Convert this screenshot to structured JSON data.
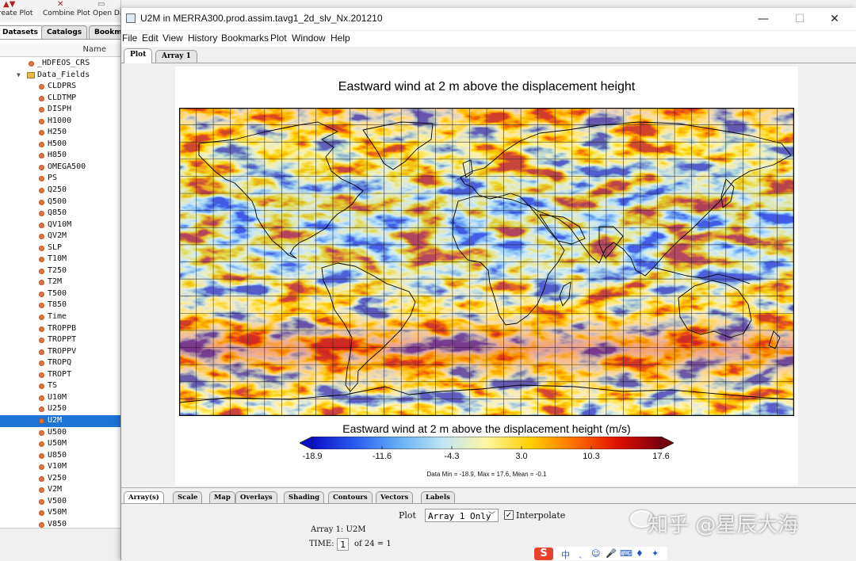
{
  "left_app": {
    "toolbar": [
      {
        "label": "reate Plot",
        "icon": "create-plot-icon"
      },
      {
        "label": "Combine Plot",
        "icon": "combine-plot-icon"
      },
      {
        "label": "Open Da",
        "icon": "open-dataset-icon"
      }
    ],
    "tabs": [
      "Datasets",
      "Catalogs",
      "Bookm"
    ],
    "column_header": "Name",
    "tree": [
      {
        "label": "_HDFEOS_CRS",
        "kind": "var",
        "indent": 2
      },
      {
        "label": "Data_Fields",
        "kind": "folder",
        "indent": 1
      },
      {
        "label": "CLDPRS",
        "kind": "var",
        "indent": 3
      },
      {
        "label": "CLDTMP",
        "kind": "var",
        "indent": 3
      },
      {
        "label": "DISPH",
        "kind": "var",
        "indent": 3
      },
      {
        "label": "H1000",
        "kind": "var",
        "indent": 3
      },
      {
        "label": "H250",
        "kind": "var",
        "indent": 3
      },
      {
        "label": "H500",
        "kind": "var",
        "indent": 3
      },
      {
        "label": "H850",
        "kind": "var",
        "indent": 3
      },
      {
        "label": "OMEGA500",
        "kind": "var",
        "indent": 3
      },
      {
        "label": "PS",
        "kind": "var",
        "indent": 3
      },
      {
        "label": "Q250",
        "kind": "var",
        "indent": 3
      },
      {
        "label": "Q500",
        "kind": "var",
        "indent": 3
      },
      {
        "label": "Q850",
        "kind": "var",
        "indent": 3
      },
      {
        "label": "QV10M",
        "kind": "var",
        "indent": 3
      },
      {
        "label": "QV2M",
        "kind": "var",
        "indent": 3
      },
      {
        "label": "SLP",
        "kind": "var",
        "indent": 3
      },
      {
        "label": "T10M",
        "kind": "var",
        "indent": 3
      },
      {
        "label": "T250",
        "kind": "var",
        "indent": 3
      },
      {
        "label": "T2M",
        "kind": "var",
        "indent": 3
      },
      {
        "label": "T500",
        "kind": "var",
        "indent": 3
      },
      {
        "label": "T850",
        "kind": "var",
        "indent": 3
      },
      {
        "label": "Time",
        "kind": "var",
        "indent": 3
      },
      {
        "label": "TROPPB",
        "kind": "var",
        "indent": 3
      },
      {
        "label": "TROPPT",
        "kind": "var",
        "indent": 3
      },
      {
        "label": "TROPPV",
        "kind": "var",
        "indent": 3
      },
      {
        "label": "TROPQ",
        "kind": "var",
        "indent": 3
      },
      {
        "label": "TROPT",
        "kind": "var",
        "indent": 3
      },
      {
        "label": "TS",
        "kind": "var",
        "indent": 3
      },
      {
        "label": "U10M",
        "kind": "var",
        "indent": 3
      },
      {
        "label": "U250",
        "kind": "var",
        "indent": 3
      },
      {
        "label": "U2M",
        "kind": "var",
        "indent": 3,
        "selected": true
      },
      {
        "label": "U500",
        "kind": "var",
        "indent": 3
      },
      {
        "label": "U50M",
        "kind": "var",
        "indent": 3
      },
      {
        "label": "U850",
        "kind": "var",
        "indent": 3
      },
      {
        "label": "V10M",
        "kind": "var",
        "indent": 3
      },
      {
        "label": "V250",
        "kind": "var",
        "indent": 3
      },
      {
        "label": "V2M",
        "kind": "var",
        "indent": 3
      },
      {
        "label": "V500",
        "kind": "var",
        "indent": 3
      },
      {
        "label": "V50M",
        "kind": "var",
        "indent": 3
      },
      {
        "label": "V850",
        "kind": "var",
        "indent": 3
      }
    ]
  },
  "window": {
    "title": "U2M in MERRA300.prod.assim.tavg1_2d_slv_Nx.201210",
    "controls": {
      "minimize": "—",
      "maximize": "☐",
      "close": "✕"
    },
    "menu": [
      "File",
      "Edit",
      "View",
      "History",
      "Bookmarks",
      "Plot",
      "Window",
      "Help"
    ],
    "tabs": [
      "Plot",
      "Array 1"
    ]
  },
  "plot": {
    "title": "Eastward wind at 2 m above the displacement height",
    "colorbar_title": "Eastward wind at 2 m above the displacement height (m/s)",
    "colorbar_ticks": [
      "-18.9",
      "-11.6",
      "-4.3",
      "3.0",
      "10.3",
      "17.6"
    ],
    "colorbar_stops": [
      "#0a10c8",
      "#2b5cf0",
      "#66b0f5",
      "#bfe6f5",
      "#fff6a0",
      "#ffd000",
      "#ff7000",
      "#e01000",
      "#7a0010"
    ],
    "colorbar_range": [
      -18.9,
      17.6
    ],
    "stats": "Data Min = -18.9, Max = 17.6, Mean = -0.1",
    "map": {
      "projection": "equirectangular",
      "grid_spacing_deg": 10,
      "lon_range": [
        -180,
        180
      ],
      "lat_range": [
        -90,
        90
      ]
    }
  },
  "bottom_panel": {
    "tabs": [
      "Array(s)",
      "Scale",
      "Map",
      "Overlays",
      "Shading",
      "Contours",
      "Vectors",
      "Labels"
    ],
    "plot_label": "Plot",
    "plot_select_value": "Array 1 Only",
    "interpolate_label": "Interpolate",
    "interpolate_checked": true,
    "array_label": "Array 1: U2M",
    "time_label": "TIME:",
    "time_value": "1",
    "time_of": "of 24 = 1"
  },
  "overlay": {
    "watermark": "知乎 @星辰大海",
    "ime_logo": "S",
    "ime_icons": [
      "中",
      "ˎ",
      "☺",
      "🎤",
      "⌨",
      "♦",
      "✦"
    ]
  }
}
